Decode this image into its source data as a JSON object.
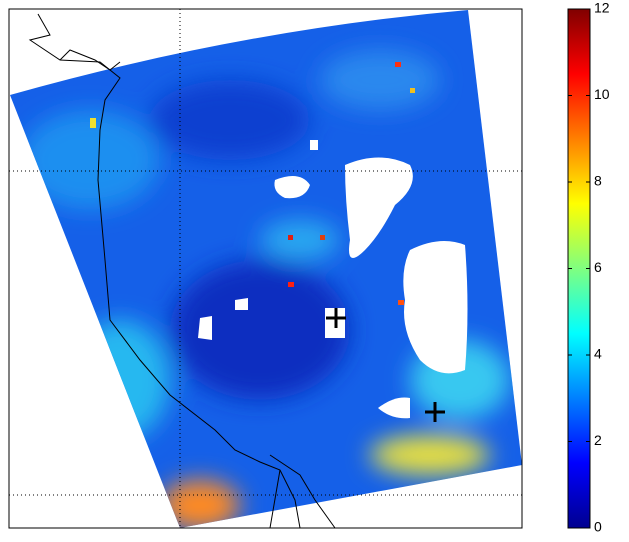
{
  "colorbar": {
    "range": [
      0,
      12
    ],
    "ticks": [
      0,
      2,
      4,
      6,
      8,
      10,
      12
    ]
  }
}
